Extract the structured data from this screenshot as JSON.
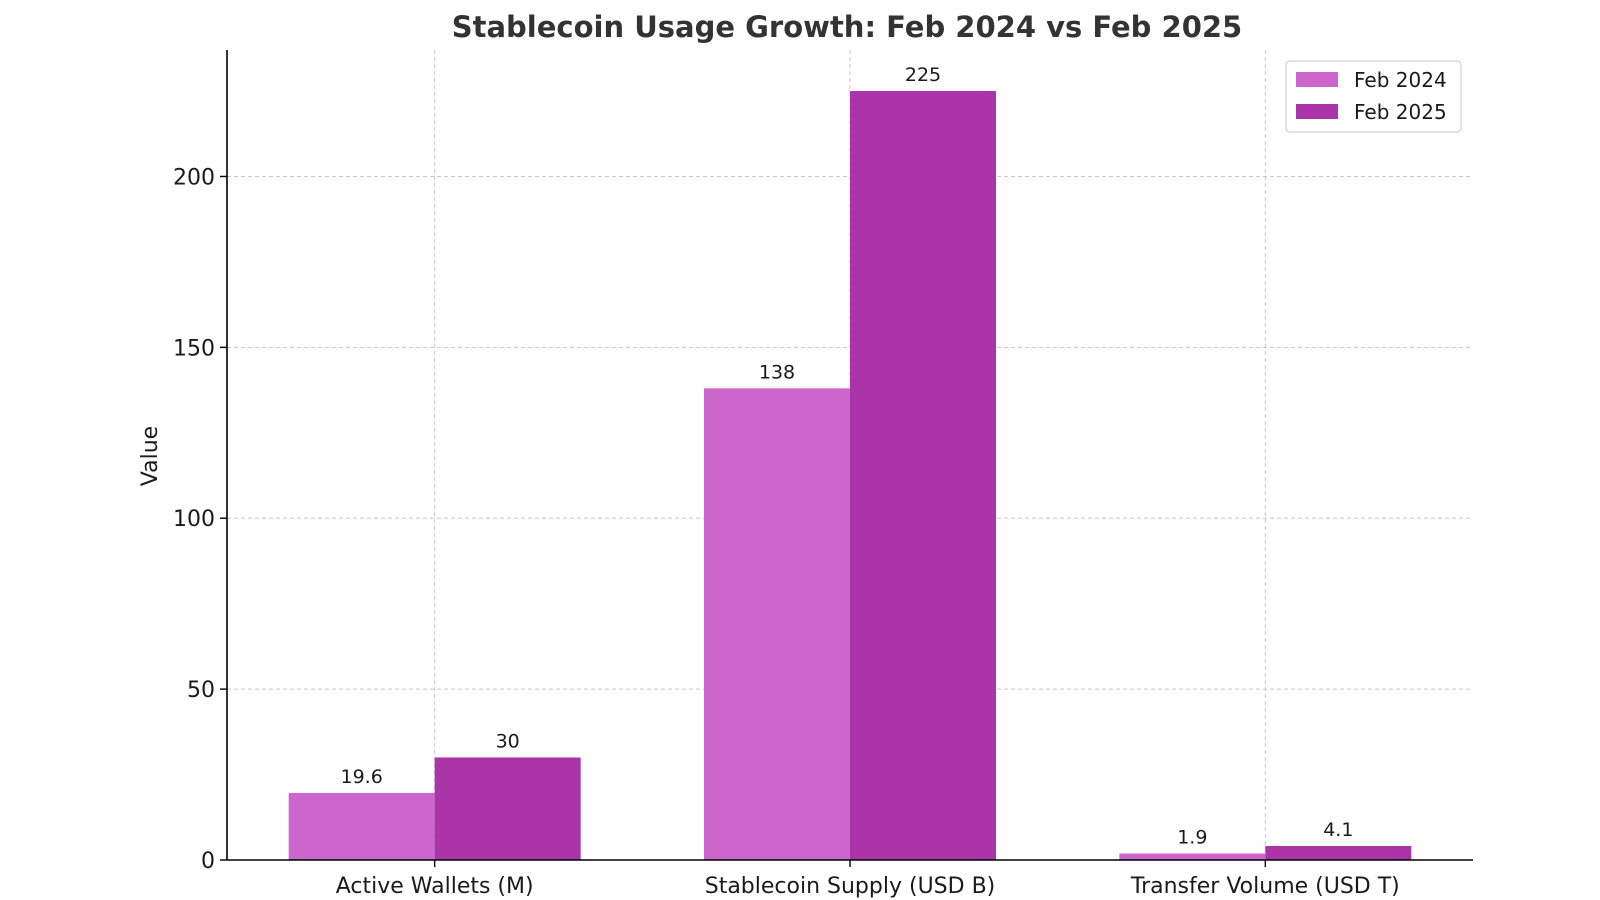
{
  "chart_data": {
    "type": "bar",
    "title": "Stablecoin Usage Growth: Feb 2024 vs Feb 2025",
    "xlabel": "",
    "ylabel": "Value",
    "categories": [
      "Active Wallets (M)",
      "Stablecoin Supply (USD B)",
      "Transfer Volume (USD T)"
    ],
    "series": [
      {
        "name": "Feb 2024",
        "values": [
          19.6,
          138,
          1.9
        ],
        "labels": [
          "19.6",
          "138",
          "1.9"
        ],
        "color": "#cc66cc"
      },
      {
        "name": "Feb 2025",
        "values": [
          30,
          225,
          4.1
        ],
        "labels": [
          "30",
          "225",
          "4.1"
        ],
        "color": "#ab35a8"
      }
    ],
    "ylim": [
      0,
      237
    ],
    "yticks": [
      0,
      50,
      100,
      150,
      200
    ],
    "grid": true,
    "legend_position": "top-right"
  }
}
